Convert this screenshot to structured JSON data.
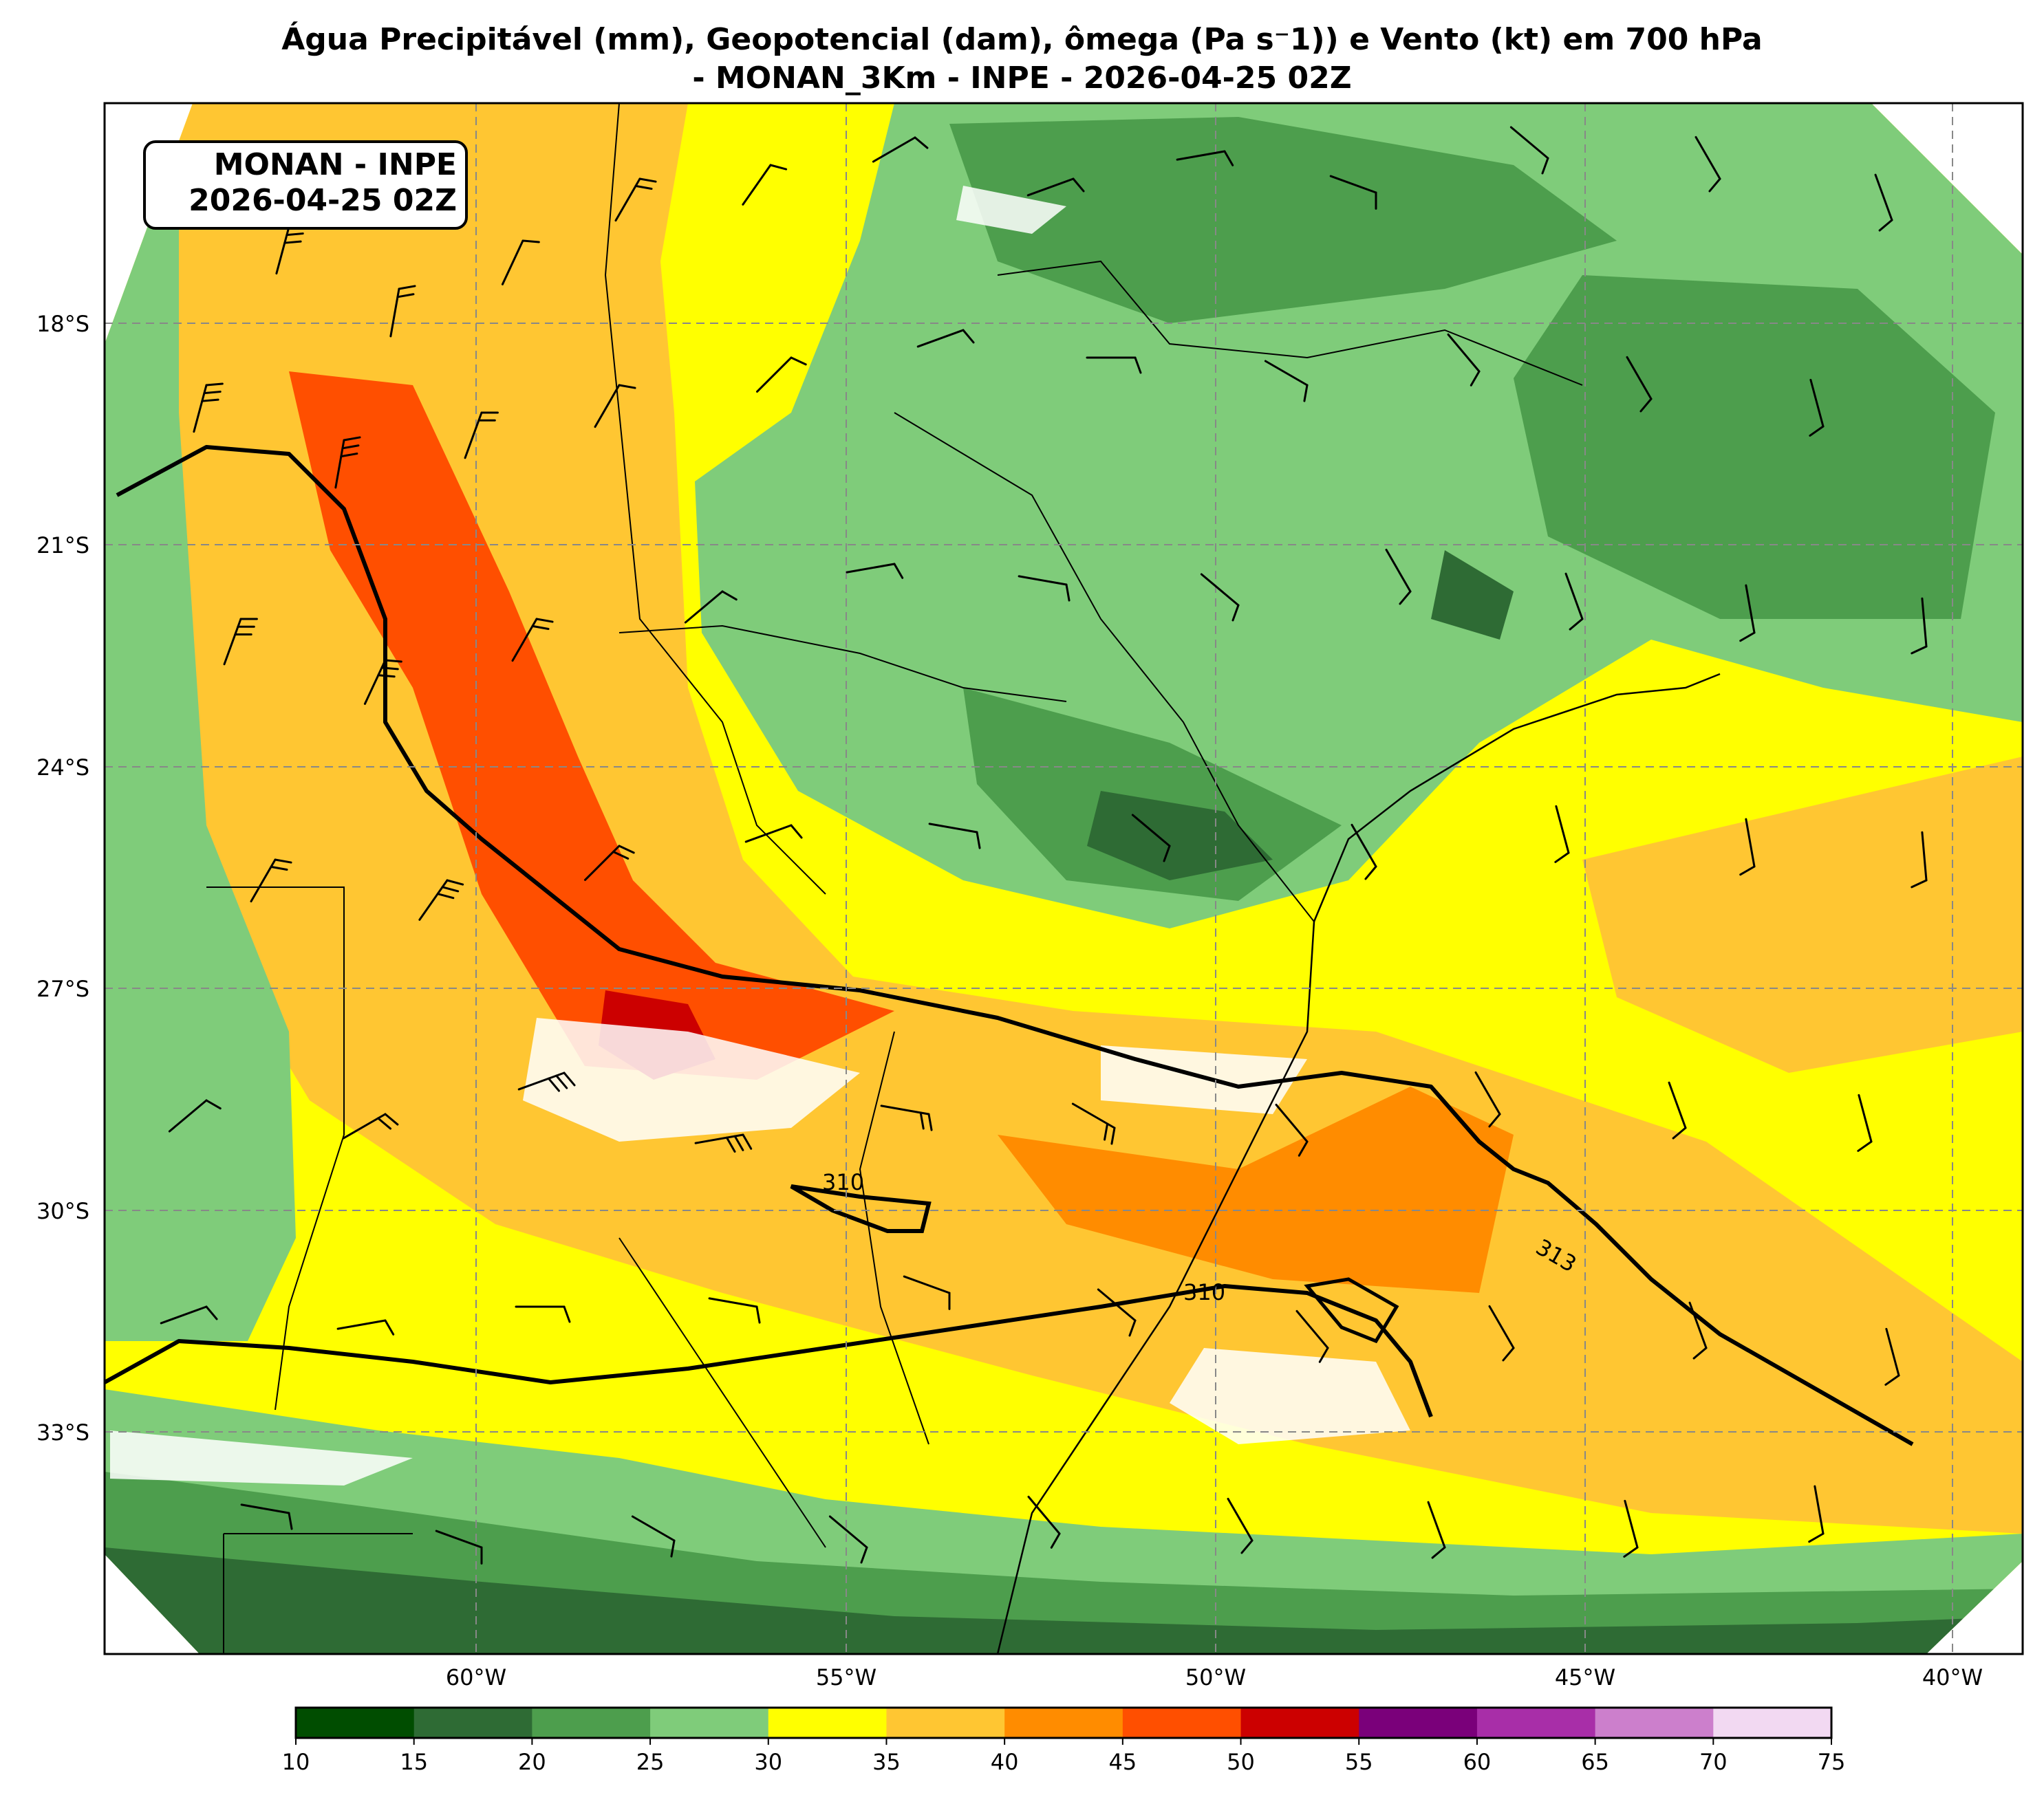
{
  "title": {
    "line1": "Água Precipitável (mm), Geopotencial (dam), ômega (Pa s⁻1)) e Vento (kt) em 700 hPa",
    "line2": "- MONAN_3Km - INPE - 2026-04-25 02Z"
  },
  "infobox": {
    "line1": "MONAN - INPE",
    "line2": "2026-04-25 02Z"
  },
  "latitude_labels": [
    "18°S",
    "21°S",
    "24°S",
    "27°S",
    "30°S",
    "33°S"
  ],
  "longitude_labels": [
    "60°W",
    "55°W",
    "50°W",
    "45°W",
    "40°W"
  ],
  "contour_labels": [
    "310",
    "310",
    "313"
  ],
  "colorbar": {
    "ticks": [
      "10",
      "15",
      "20",
      "25",
      "30",
      "35",
      "40",
      "45",
      "50",
      "55",
      "60",
      "65",
      "70",
      "75"
    ],
    "colors": [
      "#004d00",
      "#2e6b34",
      "#4d9e4d",
      "#7fcc7a",
      "#ffff00",
      "#ffc632",
      "#ff8c00",
      "#ff4f00",
      "#cc0000",
      "#7a007a",
      "#a82ea8",
      "#cc7fcc",
      "#f2d9f2"
    ]
  },
  "palette": {
    "very_dark_green": "#004d00",
    "dark_green": "#2e6b34",
    "mid_green": "#4d9e4d",
    "light_green": "#7fcc7a",
    "yellow": "#ffff00",
    "light_orange": "#ffc632",
    "orange": "#ff8c00",
    "red_orange": "#ff4f00",
    "red": "#cc0000",
    "white_patches": "#ffffff"
  }
}
